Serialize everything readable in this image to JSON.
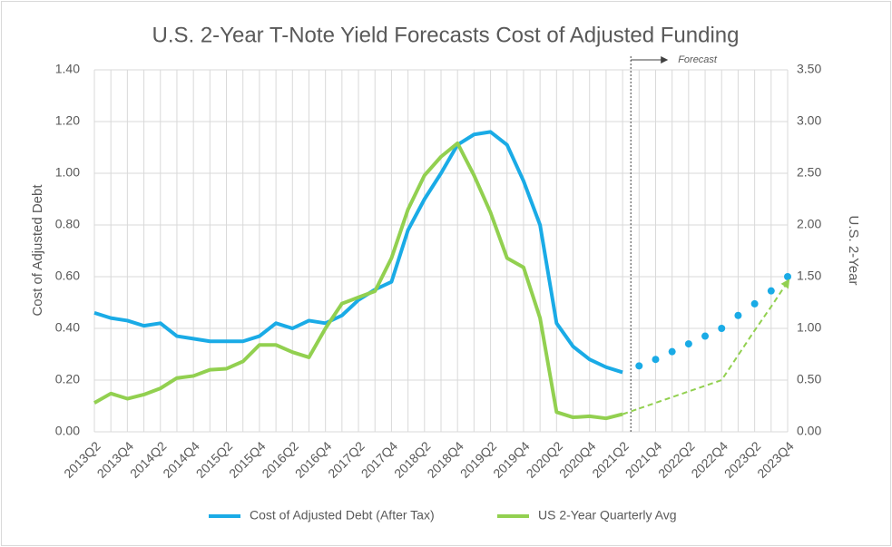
{
  "chart_data": {
    "type": "line",
    "title": "U.S. 2-Year T-Note Yield Forecasts Cost of Adjusted Funding",
    "y_label": "Cost of Adjusted Debt",
    "y2_label": "U.S. 2-Year",
    "annotation": "Forecast",
    "categories": [
      "2013Q2",
      null,
      "2013Q4",
      null,
      "2014Q2",
      null,
      "2014Q4",
      null,
      "2015Q2",
      null,
      "2015Q4",
      null,
      "2016Q2",
      null,
      "2016Q4",
      null,
      "2017Q2",
      null,
      "2017Q4",
      null,
      "2018Q2",
      null,
      "2018Q4",
      null,
      "2019Q2",
      null,
      "2019Q4",
      null,
      "2020Q2",
      null,
      "2020Q4",
      null,
      "2021Q2",
      null,
      "2021Q4",
      null,
      "2022Q2",
      null,
      "2022Q4",
      null,
      "2023Q2",
      null,
      "2023Q4"
    ],
    "series": [
      {
        "name": "Cost of Adjusted Debt (After Tax)",
        "color": "#1aabe6",
        "axis": "y",
        "values": [
          0.46,
          0.44,
          0.43,
          0.41,
          0.42,
          0.37,
          0.36,
          0.35,
          0.35,
          0.35,
          0.37,
          0.42,
          0.4,
          0.43,
          0.42,
          0.45,
          0.51,
          0.55,
          0.58,
          0.78,
          0.9,
          1.0,
          1.11,
          1.15,
          1.16,
          1.11,
          0.97,
          0.8,
          0.42,
          0.33,
          0.28,
          0.25,
          0.23,
          null,
          null,
          null,
          null,
          null,
          null,
          null,
          null,
          null,
          null
        ],
        "forecast": [
          null,
          null,
          null,
          null,
          null,
          null,
          null,
          null,
          null,
          null,
          null,
          null,
          null,
          null,
          null,
          null,
          null,
          null,
          null,
          null,
          null,
          null,
          null,
          null,
          null,
          null,
          null,
          null,
          null,
          null,
          null,
          null,
          null,
          0.255,
          0.28,
          0.31,
          0.34,
          0.37,
          0.4,
          0.45,
          0.495,
          0.545,
          0.6
        ]
      },
      {
        "name": "US 2-Year Quarterly Avg",
        "color": "#92d050",
        "axis": "y2",
        "values": [
          0.28,
          0.37,
          0.32,
          0.36,
          0.42,
          0.52,
          0.54,
          0.6,
          0.61,
          0.68,
          0.84,
          0.84,
          0.77,
          0.72,
          1.0,
          1.24,
          1.3,
          1.36,
          1.68,
          2.15,
          2.48,
          2.66,
          2.79,
          2.48,
          2.12,
          1.68,
          1.59,
          1.1,
          0.19,
          0.14,
          0.15,
          0.13,
          0.17,
          null,
          null,
          null,
          null,
          null,
          null,
          null,
          null,
          null,
          null
        ],
        "forecast": [
          null,
          null,
          null,
          null,
          null,
          null,
          null,
          null,
          null,
          null,
          null,
          null,
          null,
          null,
          null,
          null,
          null,
          null,
          null,
          null,
          null,
          null,
          null,
          null,
          null,
          null,
          null,
          null,
          null,
          null,
          null,
          null,
          null,
          0.225,
          0.28,
          0.335,
          0.39,
          0.445,
          0.5,
          0.74,
          0.98,
          1.21,
          1.45
        ]
      }
    ],
    "ylim": [
      0,
      1.4
    ],
    "yticks": [
      {
        "value": 0,
        "label": "0.00"
      },
      {
        "value": 0.2,
        "label": "0.20"
      },
      {
        "value": 0.4,
        "label": "0.40"
      },
      {
        "value": 0.6,
        "label": "0.60"
      },
      {
        "value": 0.8,
        "label": "0.80"
      },
      {
        "value": 1,
        "label": "1.00"
      },
      {
        "value": 1.2,
        "label": "1.20"
      },
      {
        "value": 1.4,
        "label": "1.40"
      }
    ],
    "y2lim": [
      0,
      3.5
    ],
    "y2ticks": [
      {
        "value": 0,
        "label": "0.00"
      },
      {
        "value": 0.5,
        "label": "0.50"
      },
      {
        "value": 1,
        "label": "1.00"
      },
      {
        "value": 1.5,
        "label": "1.50"
      },
      {
        "value": 2,
        "label": "2.00"
      },
      {
        "value": 2.5,
        "label": "2.50"
      },
      {
        "value": 3,
        "label": "3.00"
      },
      {
        "value": 3.5,
        "label": "3.50"
      }
    ],
    "grid": true,
    "legend": "bottom"
  }
}
